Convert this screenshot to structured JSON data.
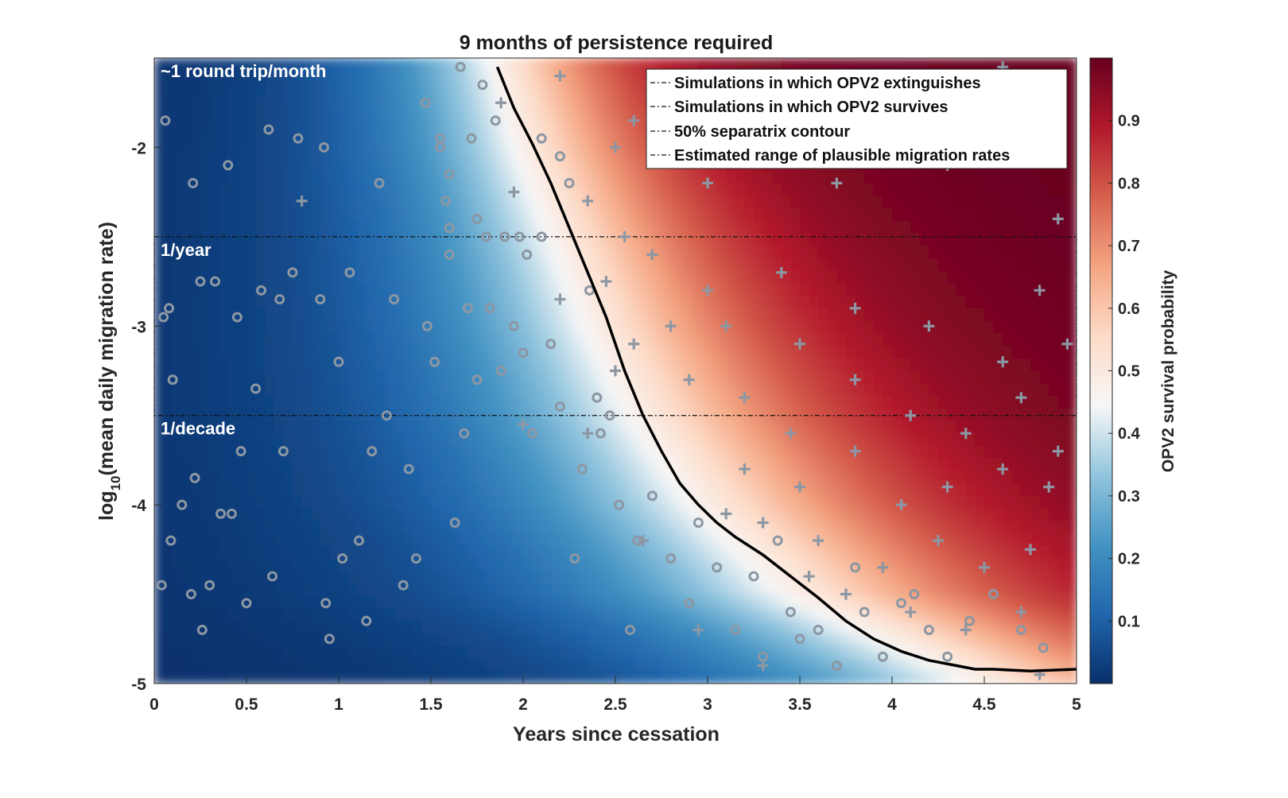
{
  "chart_data": {
    "type": "heatmap",
    "title": "9 months of persistence required",
    "xlabel": "Years since cessation",
    "ylabel_main": "log",
    "ylabel_sub": "10",
    "ylabel_rest": "(mean daily migration rate)",
    "colorbar_label": "OPV2 survival probability",
    "xlim": [
      0,
      5
    ],
    "ylim": [
      -5,
      -1.5
    ],
    "x_ticks": [
      0,
      0.5,
      1,
      1.5,
      2,
      2.5,
      3,
      3.5,
      4,
      4.5,
      5
    ],
    "x_tick_labels": [
      "0",
      "0.5",
      "1",
      "1.5",
      "2",
      "2.5",
      "3",
      "3.5",
      "4",
      "4.5",
      "5"
    ],
    "y_ticks": [
      -5,
      -4,
      -3,
      -2
    ],
    "y_tick_labels": [
      "-5",
      "-4",
      "-3",
      "-2"
    ],
    "colorbar_ticks": [
      0.1,
      0.2,
      0.3,
      0.4,
      0.5,
      0.6,
      0.7,
      0.8,
      0.9
    ],
    "colorbar_tick_labels": [
      "0.1",
      "0.2",
      "0.3",
      "0.4",
      "0.5",
      "0.6",
      "0.7",
      "0.8",
      "0.9"
    ],
    "clim": [
      0,
      1
    ],
    "colormap": [
      "#08306b",
      "#2166ac",
      "#4393c3",
      "#92c5de",
      "#f7f7f7",
      "#fddbc7",
      "#f4a582",
      "#d6604d",
      "#b2182b",
      "#67001f"
    ],
    "legend_position": "top-right",
    "legend": [
      {
        "label": "Simulations in which OPV2 extinguishes"
      },
      {
        "label": "Simulations in which OPV2 survives"
      },
      {
        "label": "50% separatrix contour"
      },
      {
        "label": "Estimated range of plausible migration rates"
      }
    ],
    "region_labels": [
      {
        "text": "~1 round trip/month",
        "y": -1.5
      },
      {
        "text": "1/year",
        "y": -2.5
      },
      {
        "text": "1/decade",
        "y": -3.5
      }
    ],
    "plausible_range": [
      -3.5,
      -2.5
    ],
    "separatrix": {
      "x": [
        1.86,
        1.95,
        2.05,
        2.15,
        2.25,
        2.35,
        2.45,
        2.55,
        2.65,
        2.75,
        2.85,
        2.95,
        3.05,
        3.15,
        3.3,
        3.45,
        3.6,
        3.75,
        3.9,
        4.05,
        4.2,
        4.35,
        4.45,
        4.55,
        4.75,
        5.0
      ],
      "y": [
        -1.55,
        -1.78,
        -1.98,
        -2.2,
        -2.45,
        -2.7,
        -2.95,
        -3.25,
        -3.5,
        -3.7,
        -3.88,
        -4.0,
        -4.1,
        -4.18,
        -4.28,
        -4.4,
        -4.52,
        -4.65,
        -4.75,
        -4.82,
        -4.87,
        -4.9,
        -4.92,
        -4.92,
        -4.93,
        -4.92
      ]
    },
    "field_boundary_y": [
      -1.5,
      -2.0,
      -2.5,
      -3.0,
      -3.5,
      -4.0,
      -4.5,
      -5.0
    ],
    "field_boundary_x": [
      1.9,
      2.05,
      2.25,
      2.45,
      2.7,
      3.05,
      3.55,
      4.6
    ],
    "series_symbols": {
      "extinguishes": "o",
      "survives": "+"
    },
    "simulations": {
      "extinguishes": [
        [
          0.04,
          -4.45
        ],
        [
          0.05,
          -2.95
        ],
        [
          0.08,
          -2.9
        ],
        [
          0.1,
          -3.3
        ],
        [
          0.09,
          -4.2
        ],
        [
          0.15,
          -4.0
        ],
        [
          0.2,
          -4.5
        ],
        [
          0.21,
          -2.2
        ],
        [
          0.22,
          -3.85
        ],
        [
          0.25,
          -2.75
        ],
        [
          0.26,
          -4.7
        ],
        [
          0.3,
          -4.45
        ],
        [
          0.33,
          -2.75
        ],
        [
          0.36,
          -4.05
        ],
        [
          0.4,
          -2.1
        ],
        [
          0.42,
          -4.05
        ],
        [
          0.45,
          -2.95
        ],
        [
          0.47,
          -3.7
        ],
        [
          0.5,
          -4.55
        ],
        [
          0.55,
          -3.35
        ],
        [
          0.58,
          -2.8
        ],
        [
          0.64,
          -4.4
        ],
        [
          0.68,
          -2.85
        ],
        [
          0.7,
          -3.7
        ],
        [
          0.75,
          -2.7
        ],
        [
          0.9,
          -2.85
        ],
        [
          0.93,
          -4.55
        ],
        [
          0.95,
          -4.75
        ],
        [
          1.0,
          -3.2
        ],
        [
          1.02,
          -4.3
        ],
        [
          1.06,
          -2.7
        ],
        [
          1.11,
          -4.2
        ],
        [
          1.15,
          -4.65
        ],
        [
          1.18,
          -3.7
        ],
        [
          1.22,
          -2.2
        ],
        [
          1.26,
          -3.5
        ],
        [
          1.3,
          -2.85
        ],
        [
          1.35,
          -4.45
        ],
        [
          1.38,
          -3.8
        ],
        [
          1.42,
          -4.3
        ],
        [
          1.48,
          -3.0
        ],
        [
          1.52,
          -3.2
        ],
        [
          1.55,
          -2.0
        ],
        [
          1.58,
          -2.3
        ],
        [
          1.6,
          -2.6
        ],
        [
          1.63,
          -4.1
        ],
        [
          1.68,
          -3.6
        ],
        [
          1.7,
          -2.9
        ],
        [
          1.75,
          -3.3
        ],
        [
          1.8,
          -2.5
        ],
        [
          1.82,
          -2.9
        ],
        [
          1.88,
          -3.25
        ],
        [
          1.9,
          -2.5
        ],
        [
          1.95,
          -3.0
        ],
        [
          2.0,
          -3.15
        ],
        [
          2.02,
          -2.6
        ],
        [
          2.05,
          -3.6
        ],
        [
          2.1,
          -2.5
        ],
        [
          2.15,
          -3.1
        ],
        [
          2.2,
          -3.45
        ],
        [
          2.25,
          -2.2
        ],
        [
          2.28,
          -4.3
        ],
        [
          2.32,
          -3.8
        ],
        [
          2.36,
          -2.8
        ],
        [
          2.4,
          -3.4
        ],
        [
          2.42,
          -3.6
        ],
        [
          2.47,
          -3.5
        ],
        [
          2.52,
          -4.0
        ],
        [
          2.58,
          -4.7
        ],
        [
          2.62,
          -4.2
        ],
        [
          2.7,
          -3.95
        ],
        [
          2.8,
          -4.3
        ],
        [
          2.9,
          -4.55
        ],
        [
          2.95,
          -4.1
        ],
        [
          3.05,
          -4.35
        ],
        [
          3.15,
          -4.7
        ],
        [
          3.25,
          -4.4
        ],
        [
          3.3,
          -4.85
        ],
        [
          3.38,
          -4.2
        ],
        [
          3.45,
          -4.6
        ],
        [
          3.5,
          -4.75
        ],
        [
          3.6,
          -4.7
        ],
        [
          3.7,
          -4.9
        ],
        [
          3.8,
          -4.35
        ],
        [
          3.85,
          -4.6
        ],
        [
          3.95,
          -4.85
        ],
        [
          4.05,
          -4.55
        ],
        [
          4.12,
          -4.5
        ],
        [
          4.2,
          -4.7
        ],
        [
          4.3,
          -4.85
        ],
        [
          4.42,
          -4.65
        ],
        [
          4.55,
          -4.5
        ],
        [
          4.7,
          -4.7
        ],
        [
          4.82,
          -4.8
        ],
        [
          1.47,
          -1.75
        ],
        [
          1.55,
          -1.95
        ],
        [
          1.6,
          -2.15
        ],
        [
          1.66,
          -1.55
        ],
        [
          1.72,
          -1.95
        ],
        [
          1.75,
          -2.4
        ],
        [
          1.85,
          -1.85
        ],
        [
          1.6,
          -2.45
        ],
        [
          1.98,
          -2.5
        ],
        [
          2.1,
          -1.95
        ],
        [
          2.2,
          -2.05
        ],
        [
          1.78,
          -1.65
        ],
        [
          0.62,
          -1.9
        ],
        [
          0.78,
          -1.95
        ],
        [
          0.92,
          -2.0
        ],
        [
          0.06,
          -1.85
        ]
      ],
      "survives": [
        [
          0.8,
          -2.3
        ],
        [
          1.88,
          -1.75
        ],
        [
          2.2,
          -1.6
        ],
        [
          2.5,
          -2.0
        ],
        [
          2.8,
          -1.7
        ],
        [
          3.0,
          -2.2
        ],
        [
          3.3,
          -1.95
        ],
        [
          3.7,
          -2.2
        ],
        [
          4.0,
          -1.9
        ],
        [
          4.3,
          -2.1
        ],
        [
          4.6,
          -1.8
        ],
        [
          4.9,
          -2.4
        ],
        [
          2.7,
          -2.6
        ],
        [
          3.0,
          -2.8
        ],
        [
          3.4,
          -2.7
        ],
        [
          3.8,
          -2.9
        ],
        [
          4.2,
          -3.0
        ],
        [
          4.6,
          -3.2
        ],
        [
          4.8,
          -2.8
        ],
        [
          2.6,
          -3.1
        ],
        [
          2.9,
          -3.3
        ],
        [
          3.2,
          -3.4
        ],
        [
          3.5,
          -3.1
        ],
        [
          3.8,
          -3.3
        ],
        [
          4.1,
          -3.5
        ],
        [
          4.4,
          -3.6
        ],
        [
          4.7,
          -3.4
        ],
        [
          4.9,
          -3.7
        ],
        [
          3.2,
          -3.8
        ],
        [
          3.5,
          -3.9
        ],
        [
          3.8,
          -3.7
        ],
        [
          4.05,
          -4.0
        ],
        [
          4.3,
          -3.9
        ],
        [
          4.6,
          -3.8
        ],
        [
          4.85,
          -3.9
        ],
        [
          3.3,
          -4.1
        ],
        [
          3.6,
          -4.2
        ],
        [
          3.95,
          -4.35
        ],
        [
          4.25,
          -4.2
        ],
        [
          4.5,
          -4.35
        ],
        [
          4.75,
          -4.25
        ],
        [
          3.75,
          -4.5
        ],
        [
          4.1,
          -4.6
        ],
        [
          4.4,
          -4.7
        ],
        [
          4.7,
          -4.6
        ],
        [
          2.35,
          -2.3
        ],
        [
          2.55,
          -2.5
        ],
        [
          2.45,
          -2.75
        ],
        [
          2.8,
          -3.0
        ],
        [
          3.1,
          -3.0
        ],
        [
          2.2,
          -2.85
        ],
        [
          2.5,
          -3.25
        ],
        [
          3.45,
          -3.6
        ],
        [
          3.1,
          -4.05
        ],
        [
          2.65,
          -4.2
        ],
        [
          2.95,
          -4.7
        ],
        [
          3.55,
          -4.4
        ],
        [
          3.3,
          -4.9
        ],
        [
          4.8,
          -4.95
        ],
        [
          4.95,
          -3.1
        ],
        [
          2.6,
          -1.85
        ],
        [
          3.1,
          -1.75
        ],
        [
          3.6,
          -1.65
        ],
        [
          4.1,
          -1.75
        ],
        [
          4.6,
          -1.55
        ],
        [
          1.95,
          -2.25
        ],
        [
          2.35,
          -3.6
        ],
        [
          2.0,
          -3.55
        ]
      ]
    }
  }
}
